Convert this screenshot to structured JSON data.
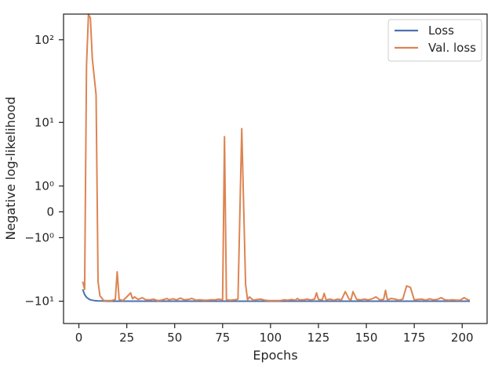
{
  "chart_data": {
    "type": "line",
    "xlabel": "Epochs",
    "ylabel": "Negative log-likelihood",
    "yscale": "symlog",
    "xlim": [
      -8,
      213
    ],
    "ylim": [
      -19,
      200
    ],
    "x_ticks": [
      0,
      25,
      50,
      75,
      100,
      125,
      150,
      175,
      200
    ],
    "y_ticks": [
      {
        "value": -10,
        "label": "−10¹"
      },
      {
        "value": -1,
        "label": "−10⁰"
      },
      {
        "value": 0,
        "label": "0"
      },
      {
        "value": 1,
        "label": "10⁰"
      },
      {
        "value": 10,
        "label": "10¹"
      },
      {
        "value": 100,
        "label": "10²"
      }
    ],
    "legend_position": "top-right",
    "grid": false,
    "series": [
      {
        "name": "Loss",
        "color": "#4c72b0",
        "x": [
          2,
          3,
          4,
          5,
          6,
          8,
          10,
          12,
          15,
          20,
          30,
          50,
          75,
          100,
          125,
          150,
          175,
          204
        ],
        "y": [
          -7.0,
          -8.2,
          -8.9,
          -9.3,
          -9.6,
          -9.8,
          -9.9,
          -9.95,
          -10.0,
          -10.0,
          -10.0,
          -10.0,
          -10.0,
          -10.0,
          -10.0,
          -10.0,
          -10.0,
          -10.0
        ]
      },
      {
        "name": "Val. loss",
        "color": "#dd8452",
        "x": [
          2,
          3,
          4,
          5,
          6,
          7,
          9,
          10,
          11,
          13,
          15,
          17,
          19,
          20,
          21,
          23,
          25,
          27,
          28,
          29,
          31,
          33,
          35,
          37,
          39,
          41,
          43,
          45,
          46,
          47,
          49,
          51,
          53,
          55,
          57,
          59,
          61,
          63,
          65,
          67,
          69,
          71,
          73,
          75,
          76,
          77,
          79,
          81,
          83,
          85,
          87,
          88,
          89,
          91,
          93,
          95,
          97,
          99,
          101,
          103,
          105,
          107,
          109,
          111,
          113,
          114,
          115,
          117,
          119,
          121,
          123,
          124,
          125,
          127,
          128,
          129,
          131,
          133,
          135,
          137,
          139,
          141,
          142,
          143,
          145,
          147,
          149,
          151,
          153,
          155,
          157,
          159,
          160,
          161,
          163,
          165,
          167,
          169,
          171,
          173,
          175,
          177,
          179,
          181,
          183,
          185,
          187,
          189,
          191,
          193,
          195,
          197,
          199,
          201,
          203,
          204
        ],
        "y": [
          -5.5,
          -7.0,
          50,
          200,
          180,
          60,
          22,
          -5.5,
          -8.5,
          -9.8,
          -9.8,
          -9.8,
          -9.5,
          -4.0,
          -9.5,
          -9.8,
          -8.8,
          -7.8,
          -9.3,
          -8.8,
          -9.5,
          -9.0,
          -9.6,
          -9.6,
          -9.4,
          -9.8,
          -9.7,
          -9.4,
          -9.2,
          -9.6,
          -9.3,
          -9.6,
          -9.1,
          -9.6,
          -9.5,
          -9.2,
          -9.7,
          -9.6,
          -9.7,
          -9.7,
          -9.6,
          -9.6,
          -9.4,
          -9.6,
          6.5,
          -9.6,
          -9.7,
          -9.6,
          -9.4,
          8.3,
          -6.0,
          -9.6,
          -8.8,
          -9.7,
          -9.5,
          -9.4,
          -9.7,
          -9.8,
          -9.8,
          -9.8,
          -9.8,
          -9.6,
          -9.7,
          -9.5,
          -9.7,
          -9.2,
          -9.6,
          -9.6,
          -9.4,
          -9.6,
          -9.4,
          -7.8,
          -9.5,
          -9.6,
          -7.9,
          -9.6,
          -9.4,
          -9.7,
          -9.4,
          -9.6,
          -7.5,
          -9.4,
          -9.6,
          -7.5,
          -9.5,
          -9.6,
          -9.4,
          -9.6,
          -9.3,
          -8.8,
          -9.6,
          -9.5,
          -7.2,
          -9.6,
          -9.2,
          -9.4,
          -9.7,
          -9.4,
          -6.3,
          -6.6,
          -9.6,
          -9.5,
          -9.4,
          -9.7,
          -9.3,
          -9.6,
          -9.5,
          -9.0,
          -9.6,
          -9.7,
          -9.6,
          -9.7,
          -9.7,
          -9.0,
          -9.6,
          -9.7
        ]
      }
    ]
  }
}
